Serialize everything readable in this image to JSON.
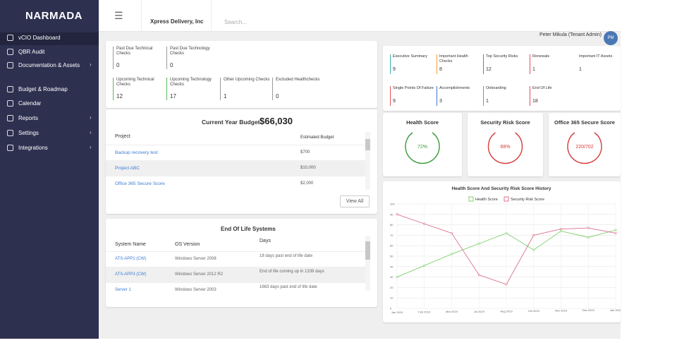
{
  "sidebar": {
    "logo": "NARMADA",
    "menu": [
      "vCIO Dashboard",
      "QBR Audit",
      "Documentation & Assets",
      "Budget & Roadmap",
      "Calendar",
      "Reports",
      "Settings",
      "Integrations"
    ]
  },
  "topbar": {
    "company": "Xpress Delivery, Inc",
    "search": "Search...",
    "user": "Peter Mikula (Tenant Admin)",
    "avatar": "PM"
  },
  "checks": [
    {
      "label": "Past Due Technical Checks",
      "value": 0
    },
    {
      "label": "Past Due Technology Checks",
      "value": 0
    },
    {
      "label": "Upcoming Technical Checks",
      "value": 12
    },
    {
      "label": "Upcoming Technology Checks",
      "value": 17
    },
    {
      "label": "Other Upcoming Checks",
      "value": 1
    },
    {
      "label": "Excluded Healthchecks",
      "value": 0
    }
  ],
  "summary": [
    {
      "label": "Executive Summary",
      "value": 9,
      "color": "#3bb3b3"
    },
    {
      "label": "Important Health Checks",
      "value": 8,
      "color": "#f0a030"
    },
    {
      "label": "Top Security Risks",
      "value": 12,
      "color": "#e05050"
    },
    {
      "label": "Renewals",
      "value": 1,
      "color": "#e05050"
    },
    {
      "label": "Important IT Assets",
      "value": 1,
      "color": "#ffffff"
    },
    {
      "label": "Single Points Of Failure",
      "value": 9,
      "color": "#e05050"
    },
    {
      "label": "Accomplishments",
      "value": 3,
      "color": "#3a7bd5"
    },
    {
      "label": "Onboarding",
      "value": 1,
      "color": "#3bb3b3"
    },
    {
      "label": "End Of Life",
      "value": 18,
      "color": "#e05050"
    }
  ],
  "budget": {
    "title": "Current Year Budget",
    "total": "$66,030",
    "columns": [
      "Project",
      "Estimated Budget"
    ],
    "rows": [
      [
        "Backup recovery test",
        "$700"
      ],
      [
        "Project ABC",
        "$10,000"
      ],
      [
        "Office 365 Secure Score",
        "$2,000"
      ]
    ],
    "button": "View All"
  },
  "eol": {
    "title": "End Of Life Systems",
    "columns": [
      "System Name",
      "OS Version",
      "Days"
    ],
    "rows": [
      [
        "ATS-APP1 (CW)",
        "Windows Server 2008",
        "18 days past end of life date"
      ],
      [
        "ATS-APP3 (CW)",
        "Windows Server 2012 R2",
        "End of life coming up in 1339 days"
      ],
      [
        "Server 1",
        "Windows Server 2003",
        "1663 days past end of life date"
      ]
    ]
  },
  "scores": [
    {
      "title": "Health Score",
      "value": "72%",
      "color": "#3a9a3a"
    },
    {
      "title": "Security Risk Score",
      "value": "68%",
      "color": "#d63c3c"
    },
    {
      "title": "Office 365 Secure Score",
      "value": "220/702",
      "color": "#d63c3c"
    }
  ],
  "history_chart": {
    "type": "line",
    "title": "Health Score And Security Risk Score History",
    "categories": [
      "Jan 2019",
      "Feb 2019",
      "Mar 2019",
      "Jul 2019",
      "Aug 2019",
      "Oct 2019",
      "Nov 2019",
      "Dec 2019",
      "Jan 2020"
    ],
    "ylim": [
      0,
      100
    ],
    "yticks": [
      0,
      10,
      20,
      30,
      40,
      50,
      60,
      70,
      80,
      90,
      100
    ],
    "grid": true,
    "series": [
      {
        "name": "Health Score",
        "color": "#7ccf6a",
        "values": [
          30,
          41,
          52,
          62,
          72,
          56,
          74,
          68,
          75
        ]
      },
      {
        "name": "Security Risk Score",
        "color": "#d9708a",
        "values": [
          90,
          81,
          72,
          32,
          23,
          70,
          76,
          77,
          72
        ]
      }
    ]
  }
}
